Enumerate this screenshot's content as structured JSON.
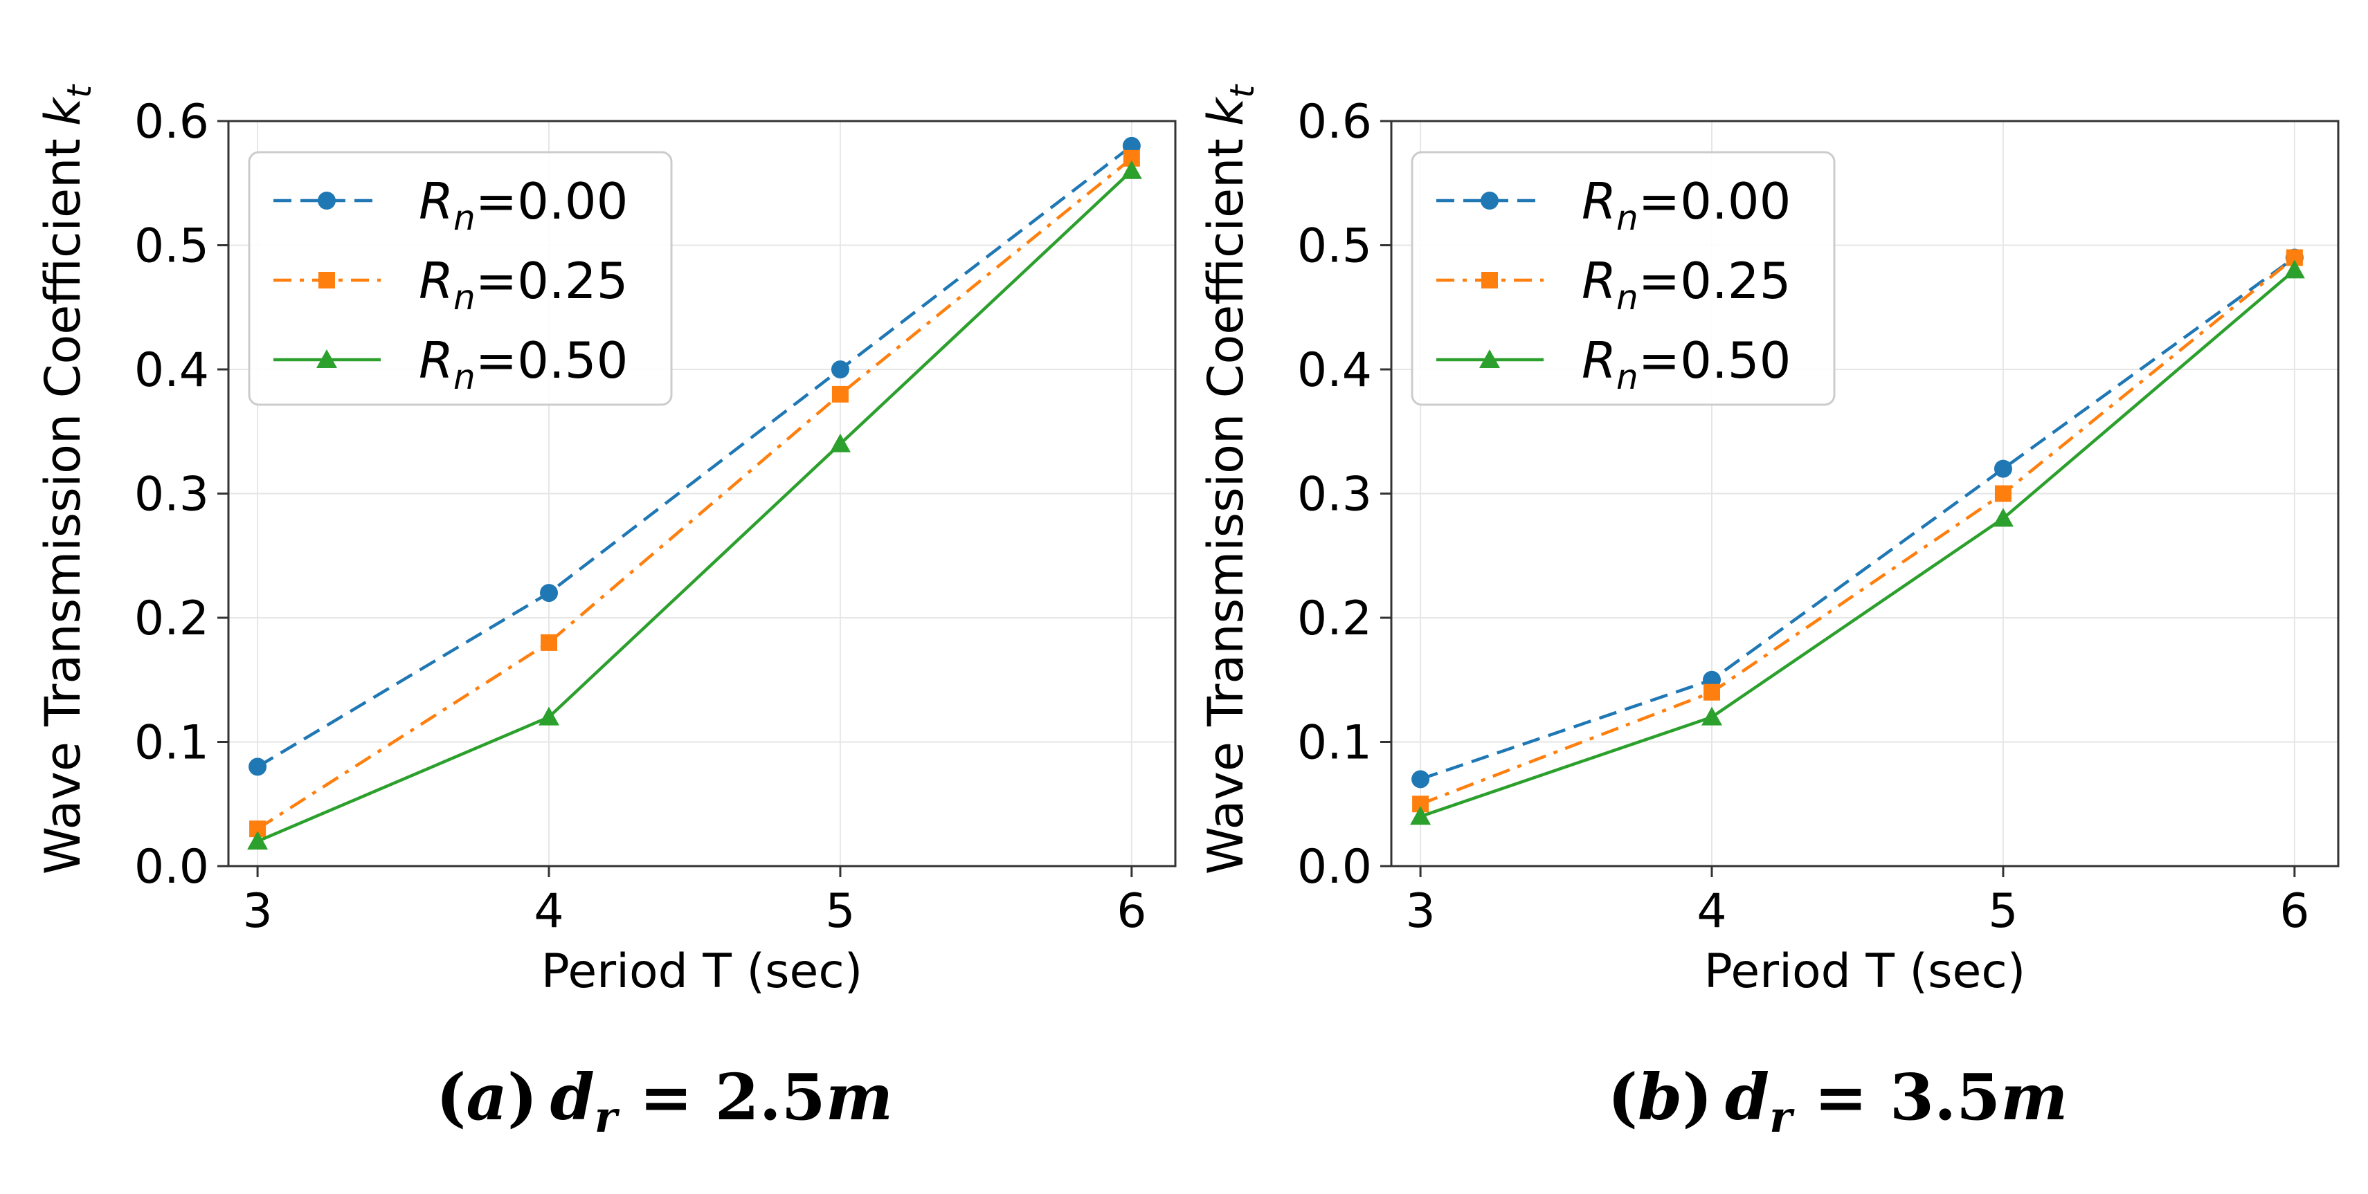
{
  "chart_data": [
    {
      "type": "line",
      "caption": "(a) d_r = 2.5m",
      "caption_parts": {
        "open": "(",
        "letter": "a",
        "close": ")",
        "var": "d",
        "sub": "r",
        "eq": " = 2.5",
        "unit": "m"
      },
      "xlabel": "Period T (sec)",
      "ylabel": "Wave Transmission Coefficient",
      "ylabel_symbol": "k",
      "ylabel_sub": "t",
      "x": [
        3,
        4,
        5,
        6
      ],
      "xticks": [
        "3",
        "4",
        "5",
        "6"
      ],
      "yticks": [
        "0.0",
        "0.1",
        "0.2",
        "0.3",
        "0.4",
        "0.5",
        "0.6"
      ],
      "xlim": [
        2.9,
        6.15
      ],
      "ylim": [
        0,
        0.6
      ],
      "grid": true,
      "legend_position": "top-left",
      "series": [
        {
          "name": "R_n=0.00",
          "sym": "R",
          "sub": "n",
          "val": "=0.00",
          "values": [
            0.08,
            0.22,
            0.4,
            0.58
          ]
        },
        {
          "name": "R_n=0.25",
          "sym": "R",
          "sub": "n",
          "val": "=0.25",
          "values": [
            0.03,
            0.18,
            0.38,
            0.57
          ]
        },
        {
          "name": "R_n=0.50",
          "sym": "R",
          "sub": "n",
          "val": "=0.50",
          "values": [
            0.02,
            0.12,
            0.34,
            0.56
          ]
        }
      ]
    },
    {
      "type": "line",
      "caption": "(b) d_r = 3.5m",
      "caption_parts": {
        "open": "(",
        "letter": "b",
        "close": ")",
        "var": "d",
        "sub": "r",
        "eq": " = 3.5",
        "unit": "m"
      },
      "xlabel": "Period T (sec)",
      "ylabel": "Wave Transmission Coefficient",
      "ylabel_symbol": "k",
      "ylabel_sub": "t",
      "x": [
        3,
        4,
        5,
        6
      ],
      "xticks": [
        "3",
        "4",
        "5",
        "6"
      ],
      "yticks": [
        "0.0",
        "0.1",
        "0.2",
        "0.3",
        "0.4",
        "0.5",
        "0.6"
      ],
      "xlim": [
        2.9,
        6.15
      ],
      "ylim": [
        0,
        0.6
      ],
      "grid": true,
      "legend_position": "top-left",
      "series": [
        {
          "name": "R_n=0.00",
          "sym": "R",
          "sub": "n",
          "val": "=0.00",
          "values": [
            0.07,
            0.15,
            0.32,
            0.49
          ]
        },
        {
          "name": "R_n=0.25",
          "sym": "R",
          "sub": "n",
          "val": "=0.25",
          "values": [
            0.05,
            0.14,
            0.3,
            0.49
          ]
        },
        {
          "name": "R_n=0.50",
          "sym": "R",
          "sub": "n",
          "val": "=0.50",
          "values": [
            0.04,
            0.12,
            0.28,
            0.48
          ]
        }
      ]
    }
  ],
  "styles": {
    "series_colors": [
      "#1f77b4",
      "#ff7f0e",
      "#2ca02c"
    ],
    "series_markers": [
      "circle",
      "square",
      "triangle"
    ],
    "series_dashes": [
      "dashed",
      "dashdot",
      "solid"
    ],
    "grid_color": "#e6e6e6"
  }
}
